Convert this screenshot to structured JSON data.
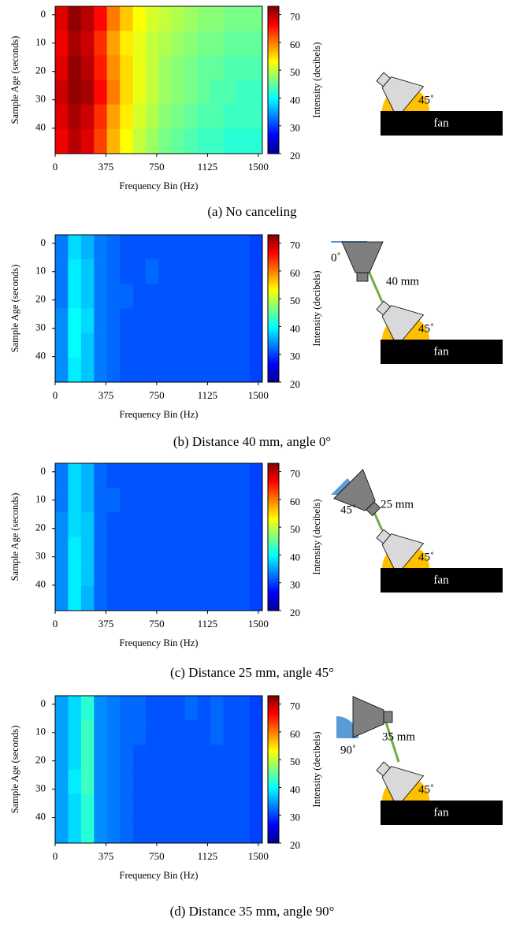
{
  "chart_data": [
    {
      "type": "heatmap",
      "caption": "(a) No canceling",
      "xlabel": "Frequency Bin (Hz)",
      "ylabel": "Sample Age (seconds)",
      "colorbar_label": "Intensity (decibels)",
      "colormap": "jet",
      "xlim": [
        0,
        1530
      ],
      "ylim": [
        -3,
        49
      ],
      "xticks": [
        0,
        375,
        750,
        1125,
        1500
      ],
      "yticks": [
        0,
        10,
        20,
        30,
        40
      ],
      "clim": [
        20,
        73
      ],
      "cticks": [
        20,
        30,
        40,
        50,
        60,
        70
      ],
      "z": [
        [
          68,
          72,
          70,
          66,
          60,
          56,
          53,
          51,
          50,
          49,
          48,
          47,
          47,
          46,
          46,
          46
        ],
        [
          67,
          71,
          69,
          64,
          58,
          54,
          52,
          50,
          49,
          48,
          47,
          46,
          46,
          45,
          45,
          45
        ],
        [
          68,
          72,
          70,
          65,
          59,
          55,
          52,
          50,
          48,
          47,
          46,
          45,
          45,
          44,
          44,
          44
        ],
        [
          69,
          72,
          71,
          66,
          60,
          55,
          52,
          50,
          48,
          47,
          46,
          45,
          44,
          44,
          43,
          43
        ],
        [
          68,
          71,
          69,
          64,
          58,
          54,
          51,
          49,
          47,
          46,
          45,
          44,
          44,
          43,
          43,
          43
        ],
        [
          67,
          70,
          68,
          63,
          57,
          53,
          50,
          48,
          46,
          45,
          44,
          43,
          43,
          42,
          42,
          42
        ]
      ],
      "diagram": {
        "fan": "fan",
        "fan_angle": "45˚"
      }
    },
    {
      "type": "heatmap",
      "caption": "(b) Distance 40 mm, angle 0°",
      "xlabel": "Frequency Bin (Hz)",
      "ylabel": "Sample Age (seconds)",
      "colorbar_label": "Intensity (decibels)",
      "colormap": "jet",
      "xlim": [
        0,
        1530
      ],
      "ylim": [
        -3,
        49
      ],
      "xticks": [
        0,
        375,
        750,
        1125,
        1500
      ],
      "yticks": [
        0,
        10,
        20,
        30,
        40
      ],
      "clim": [
        20,
        73
      ],
      "cticks": [
        20,
        30,
        40,
        50,
        60,
        70
      ],
      "z": [
        [
          33,
          38,
          36,
          33,
          32,
          31,
          31,
          31,
          31,
          31,
          31,
          31,
          31,
          31,
          31,
          30
        ],
        [
          33,
          39,
          37,
          33,
          32,
          31,
          31,
          32,
          31,
          31,
          31,
          31,
          31,
          31,
          31,
          30
        ],
        [
          33,
          39,
          37,
          33,
          32,
          32,
          31,
          31,
          31,
          31,
          31,
          31,
          31,
          31,
          31,
          30
        ],
        [
          34,
          40,
          38,
          33,
          32,
          31,
          31,
          31,
          31,
          31,
          31,
          31,
          31,
          31,
          31,
          30
        ],
        [
          34,
          40,
          37,
          33,
          32,
          31,
          31,
          31,
          31,
          31,
          31,
          31,
          31,
          31,
          31,
          30
        ],
        [
          34,
          39,
          37,
          33,
          32,
          31,
          31,
          31,
          31,
          31,
          31,
          31,
          31,
          31,
          31,
          30
        ]
      ],
      "diagram": {
        "fan": "fan",
        "fan_angle": "45˚",
        "speaker_angle": "0˚",
        "distance": "40 mm"
      }
    },
    {
      "type": "heatmap",
      "caption": "(c) Distance 25 mm, angle 45°",
      "xlabel": "Frequency Bin (Hz)",
      "ylabel": "Sample Age (seconds)",
      "colorbar_label": "Intensity (decibels)",
      "colormap": "jet",
      "xlim": [
        0,
        1530
      ],
      "ylim": [
        -3,
        49
      ],
      "xticks": [
        0,
        375,
        750,
        1125,
        1500
      ],
      "yticks": [
        0,
        10,
        20,
        30,
        40
      ],
      "clim": [
        20,
        73
      ],
      "cticks": [
        20,
        30,
        40,
        50,
        60,
        70
      ],
      "z": [
        [
          33,
          38,
          36,
          32,
          31,
          31,
          31,
          31,
          31,
          31,
          31,
          31,
          31,
          31,
          31,
          30
        ],
        [
          33,
          38,
          36,
          32,
          32,
          31,
          31,
          31,
          31,
          31,
          31,
          31,
          31,
          31,
          31,
          30
        ],
        [
          34,
          38,
          37,
          32,
          31,
          31,
          31,
          31,
          31,
          31,
          31,
          31,
          31,
          31,
          31,
          30
        ],
        [
          34,
          39,
          37,
          32,
          31,
          31,
          31,
          31,
          31,
          31,
          31,
          31,
          31,
          31,
          31,
          30
        ],
        [
          34,
          39,
          37,
          32,
          31,
          31,
          31,
          31,
          31,
          31,
          31,
          31,
          31,
          31,
          31,
          30
        ],
        [
          34,
          39,
          36,
          32,
          31,
          31,
          31,
          31,
          31,
          31,
          31,
          31,
          31,
          31,
          31,
          30
        ]
      ],
      "diagram": {
        "fan": "fan",
        "fan_angle": "45˚",
        "speaker_angle": "45˚",
        "distance": "25 mm"
      }
    },
    {
      "type": "heatmap",
      "caption": "(d) Distance 35 mm, angle 90°",
      "xlabel": "Frequency Bin (Hz)",
      "ylabel": "Sample Age (seconds)",
      "colorbar_label": "Intensity (decibels)",
      "colormap": "jet",
      "xlim": [
        0,
        1530
      ],
      "ylim": [
        -3,
        49
      ],
      "xticks": [
        0,
        375,
        750,
        1125,
        1500
      ],
      "yticks": [
        0,
        10,
        20,
        30,
        40
      ],
      "clim": [
        20,
        73
      ],
      "cticks": [
        20,
        30,
        40,
        50,
        60,
        70
      ],
      "z": [
        [
          35,
          38,
          42,
          34,
          33,
          32,
          32,
          31,
          31,
          31,
          32,
          31,
          32,
          31,
          31,
          30
        ],
        [
          35,
          38,
          43,
          34,
          33,
          32,
          32,
          31,
          31,
          31,
          31,
          31,
          32,
          31,
          31,
          30
        ],
        [
          35,
          38,
          43,
          34,
          33,
          32,
          31,
          31,
          31,
          31,
          31,
          31,
          31,
          31,
          31,
          30
        ],
        [
          35,
          39,
          43,
          34,
          33,
          32,
          31,
          31,
          31,
          31,
          31,
          31,
          31,
          31,
          31,
          30
        ],
        [
          35,
          38,
          42,
          34,
          33,
          32,
          31,
          31,
          31,
          31,
          31,
          31,
          31,
          31,
          31,
          30
        ],
        [
          35,
          38,
          42,
          34,
          33,
          32,
          31,
          31,
          31,
          31,
          31,
          31,
          31,
          31,
          31,
          30
        ]
      ],
      "diagram": {
        "fan": "fan",
        "fan_angle": "45˚",
        "speaker_angle": "90˚",
        "distance": "35 mm"
      }
    }
  ]
}
